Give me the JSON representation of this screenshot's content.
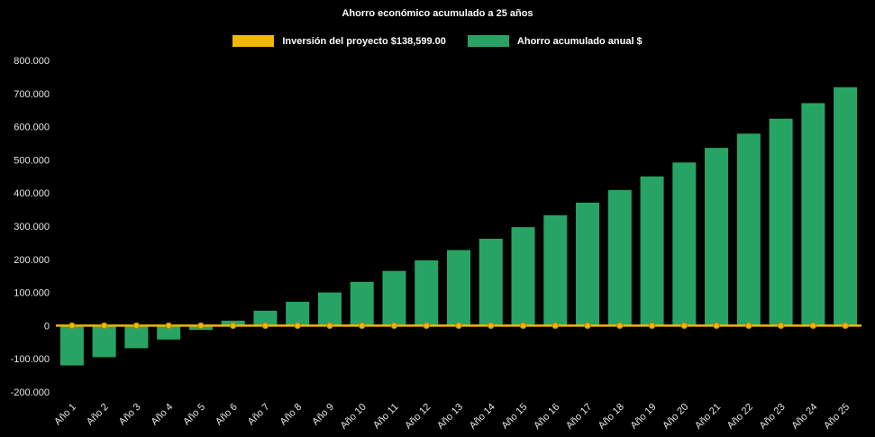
{
  "chart_data": {
    "type": "bar",
    "title": "Ahorro económico acumulado a 25 años",
    "background": "#000000",
    "text_color": "#e6e6e6",
    "grid": false,
    "legend_position": "top",
    "xlabel": "",
    "ylabel": "",
    "ylim": [
      -200000,
      800000
    ],
    "y_ticks": [
      800000,
      700000,
      600000,
      500000,
      400000,
      300000,
      200000,
      100000,
      0,
      -100000,
      -200000
    ],
    "y_tick_labels": [
      "800.000",
      "700.000",
      "600.000",
      "500.000",
      "400.000",
      "300.000",
      "200.000",
      "100.000",
      "0",
      "-100.000",
      "-200.000"
    ],
    "categories": [
      "Año 1",
      "Año 2",
      "Año 3",
      "Año 4",
      "Año 5",
      "Año 6",
      "Año 7",
      "Año 8",
      "Año 9",
      "Año 10",
      "Año 11",
      "Año 12",
      "Año 13",
      "Año 14",
      "Año 15",
      "Año 16",
      "Año 17",
      "Año 18",
      "Año 19",
      "Año 20",
      "Año 21",
      "Año 22",
      "Año 23",
      "Año 24",
      "Año 25"
    ],
    "series": [
      {
        "name": "Inversión del proyecto $138,599.00",
        "type": "line",
        "color": "#F2B705",
        "marker_stroke": "#b98200",
        "values": [
          0,
          0,
          0,
          0,
          0,
          0,
          0,
          0,
          0,
          0,
          0,
          0,
          0,
          0,
          0,
          0,
          0,
          0,
          0,
          0,
          0,
          0,
          0,
          0,
          0
        ]
      },
      {
        "name": "Ahorro acumulado anual $",
        "type": "bar",
        "color": "#27A463",
        "values": [
          -120000,
          -95000,
          -68000,
          -42000,
          -13000,
          15000,
          45000,
          72000,
          100000,
          132000,
          165000,
          197000,
          228000,
          262000,
          297000,
          333000,
          371000,
          409000,
          450000,
          492000,
          536000,
          579000,
          624000,
          671000,
          719000
        ]
      }
    ]
  }
}
